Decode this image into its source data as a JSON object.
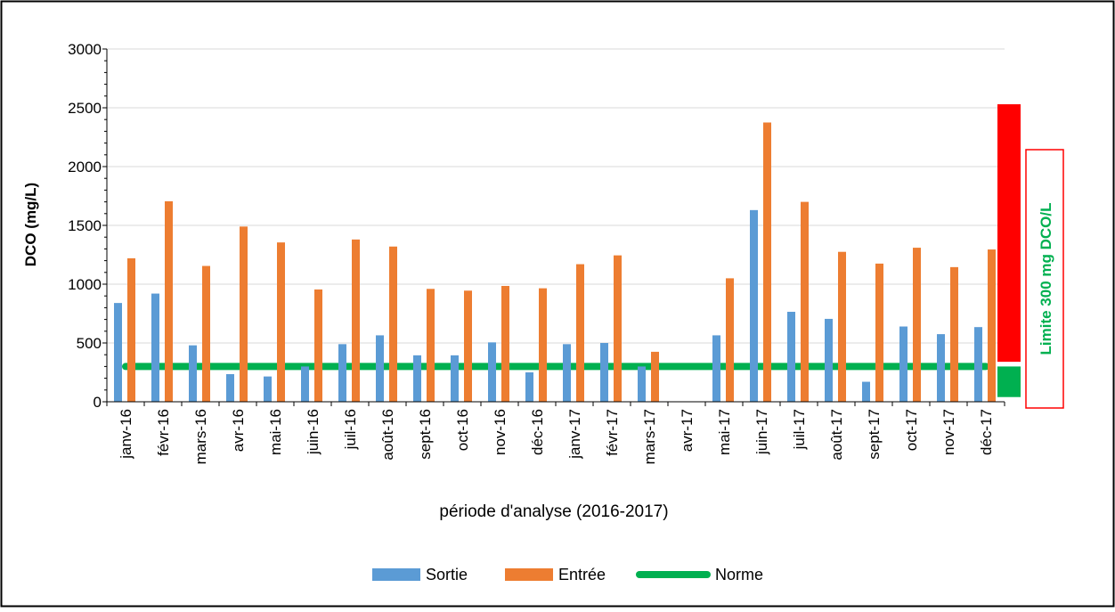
{
  "chart_data": {
    "type": "bar",
    "title": "",
    "xlabel": "période d'analyse (2016-2017)",
    "ylabel": "DCO (mg/L)",
    "ylim": [
      0,
      3000
    ],
    "yticks": [
      0,
      500,
      1000,
      1500,
      2000,
      2500,
      3000
    ],
    "grid": true,
    "legend_position": "bottom",
    "categories": [
      "janv-16",
      "févr-16",
      "mars-16",
      "avr-16",
      "mai-16",
      "juin-16",
      "juil-16",
      "août-16",
      "sept-16",
      "oct-16",
      "nov-16",
      "déc-16",
      "janv-17",
      "févr-17",
      "mars-17",
      "avr-17",
      "mai-17",
      "juin-17",
      "juil-17",
      "août-17",
      "sept-17",
      "oct-17",
      "nov-17",
      "déc-17"
    ],
    "series": [
      {
        "name": "Sortie",
        "type": "bar",
        "color": "#5b9bd5",
        "values": [
          840,
          920,
          480,
          235,
          215,
          300,
          490,
          565,
          395,
          395,
          505,
          250,
          490,
          500,
          300,
          null,
          565,
          1630,
          765,
          705,
          170,
          640,
          575,
          635
        ]
      },
      {
        "name": "Entrée",
        "type": "bar",
        "color": "#ed7d31",
        "values": [
          1220,
          1705,
          1155,
          1490,
          1355,
          955,
          1380,
          1320,
          960,
          945,
          985,
          965,
          1170,
          1245,
          425,
          null,
          1050,
          2375,
          1700,
          1275,
          1175,
          1310,
          1145,
          1295
        ]
      },
      {
        "name": "Norme",
        "type": "line",
        "color": "#00b050",
        "value": 300
      }
    ],
    "annotation": {
      "text": "Limite 300 mg DCO/L",
      "red_band": [
        340,
        2530
      ],
      "green_band": [
        40,
        300
      ],
      "red_color": "#ff0000",
      "green_color": "#00b050",
      "label_color": "#00b050",
      "box_border_color": "#ff0000"
    }
  }
}
